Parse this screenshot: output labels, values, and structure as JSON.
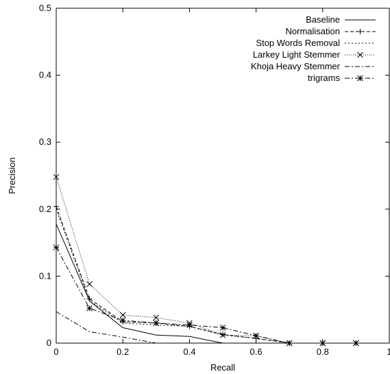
{
  "chart_data": {
    "type": "line",
    "title": "",
    "xlabel": "Recall",
    "ylabel": "Precision",
    "xlim": [
      0,
      1
    ],
    "ylim": [
      0,
      0.5
    ],
    "x_ticks": [
      "0",
      "0.2",
      "0.4",
      "0.6",
      "0.8",
      "1"
    ],
    "y_ticks": [
      "0",
      "0.1",
      "0.2",
      "0.3",
      "0.4",
      "0.5"
    ],
    "grid": false,
    "legend_position": "top-right",
    "series": [
      {
        "name": "Baseline",
        "style": "solid",
        "marker": "none",
        "points": [
          [
            0,
            0.178
          ],
          [
            0.1,
            0.063
          ],
          [
            0.2,
            0.023
          ],
          [
            0.3,
            0.012
          ],
          [
            0.4,
            0.01
          ],
          [
            0.5,
            0
          ],
          [
            0.6,
            0
          ],
          [
            0.7,
            0
          ],
          [
            0.8,
            0
          ],
          [
            0.9,
            0
          ]
        ]
      },
      {
        "name": "Normalisation",
        "style": "dashed",
        "marker": "plus",
        "points": [
          [
            0,
            0.204
          ],
          [
            0.1,
            0.066
          ],
          [
            0.2,
            0.032
          ],
          [
            0.3,
            0.03
          ],
          [
            0.4,
            0.025
          ],
          [
            0.5,
            0.013
          ],
          [
            0.6,
            0.007
          ],
          [
            0.7,
            0
          ],
          [
            0.8,
            0
          ],
          [
            0.9,
            0
          ]
        ]
      },
      {
        "name": "Stop Words Removal",
        "style": "dotted",
        "marker": "none",
        "points": [
          [
            0,
            0.2
          ],
          [
            0.1,
            0.063
          ],
          [
            0.2,
            0.03
          ],
          [
            0.3,
            0.027
          ],
          [
            0.4,
            0.025
          ],
          [
            0.5,
            0.012
          ],
          [
            0.6,
            0.007
          ],
          [
            0.7,
            0
          ],
          [
            0.8,
            0
          ],
          [
            0.9,
            0
          ]
        ]
      },
      {
        "name": "Larkey Light Stemmer",
        "style": "dotted-fine",
        "marker": "cross",
        "points": [
          [
            0,
            0.248
          ],
          [
            0.1,
            0.088
          ],
          [
            0.2,
            0.042
          ],
          [
            0.3,
            0.038
          ],
          [
            0.4,
            0.03
          ],
          [
            0.5,
            0.012
          ],
          [
            0.6,
            0.011
          ],
          [
            0.7,
            0
          ],
          [
            0.8,
            0
          ],
          [
            0.9,
            0
          ]
        ]
      },
      {
        "name": "Khoja Heavy Stemmer",
        "style": "dashdot",
        "marker": "none",
        "points": [
          [
            0,
            0.047
          ],
          [
            0.1,
            0.017
          ],
          [
            0.2,
            0.009
          ],
          [
            0.3,
            0.0
          ],
          [
            0.4,
            0
          ],
          [
            0.5,
            0
          ],
          [
            0.6,
            0
          ],
          [
            0.7,
            0
          ],
          [
            0.8,
            0
          ],
          [
            0.9,
            0
          ]
        ]
      },
      {
        "name": "trigrams",
        "style": "dashdot",
        "marker": "star",
        "points": [
          [
            0,
            0.143
          ],
          [
            0.1,
            0.052
          ],
          [
            0.2,
            0.034
          ],
          [
            0.3,
            0.03
          ],
          [
            0.4,
            0.027
          ],
          [
            0.5,
            0.023
          ],
          [
            0.6,
            0.011
          ],
          [
            0.7,
            0
          ],
          [
            0.8,
            0
          ],
          [
            0.9,
            0
          ]
        ]
      }
    ]
  }
}
